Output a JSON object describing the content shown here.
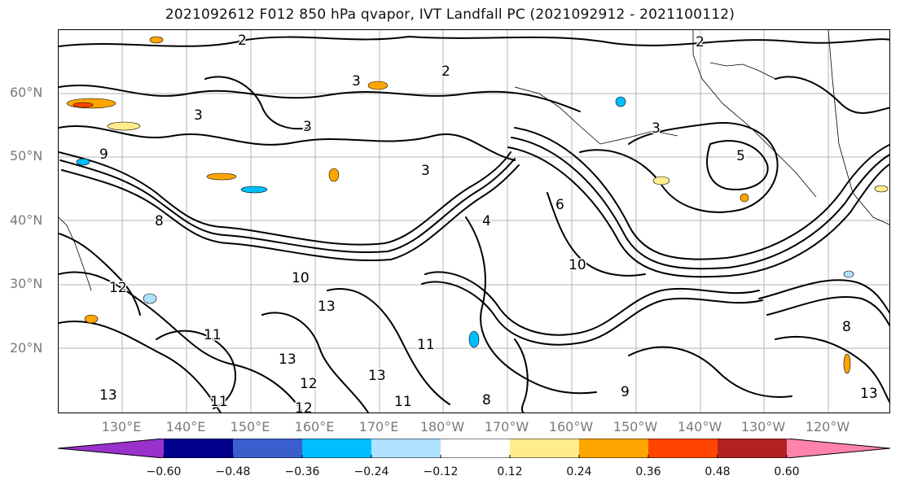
{
  "title": "2021092612 F012 850 hPa qvapor, IVT Landfall PC (2021092912 - 2021100112)",
  "map": {
    "lat_labels": [
      "60°N",
      "50°N",
      "40°N",
      "30°N",
      "20°N"
    ],
    "lon_labels": [
      "130°E",
      "140°E",
      "150°E",
      "160°E",
      "170°E",
      "180°W",
      "170°W",
      "160°W",
      "150°W",
      "140°W",
      "130°W",
      "120°W"
    ],
    "contour_labels": [
      "2",
      "2",
      "2",
      "3",
      "3",
      "3",
      "3",
      "3",
      "5",
      "6",
      "4",
      "9",
      "8",
      "10",
      "10",
      "12",
      "13",
      "11",
      "13",
      "12",
      "11",
      "11",
      "13",
      "9",
      "8",
      "11",
      "12",
      "13",
      "8",
      "13"
    ]
  },
  "colorbar": {
    "colors": [
      "#9932CC",
      "#00008B",
      "#3A5FCD",
      "#00BFFF",
      "#B0E2FF",
      "#FFFFFF",
      "#FFEC8B",
      "#FFA500",
      "#FF4500",
      "#B22222",
      "#FF82AB"
    ],
    "tick_labels": [
      "−0.60",
      "−0.48",
      "−0.36",
      "−0.24",
      "−0.12",
      "0.12",
      "0.24",
      "0.36",
      "0.48",
      "0.60"
    ]
  }
}
